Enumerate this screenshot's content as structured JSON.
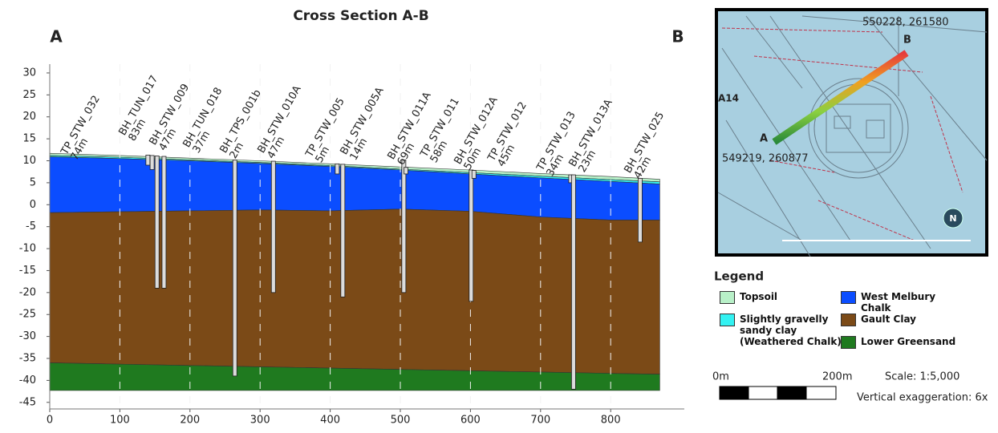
{
  "chart_data": {
    "type": "section",
    "title": "Cross Section A-B",
    "section_ends": [
      "A",
      "B"
    ],
    "x": [
      0,
      100,
      200,
      300,
      400,
      500,
      600,
      700,
      800,
      870
    ],
    "series": [
      {
        "name": "Topsoil",
        "color": "#b8f0c8",
        "values": [
          11.7,
          11.2,
          10.6,
          10.0,
          9.3,
          8.6,
          7.9,
          7.1,
          6.4,
          5.8
        ]
      },
      {
        "name": "Slightly gravelly sandy clay (Weathered Chalk)",
        "color": "#33f2f2",
        "values": [
          11.2,
          10.8,
          10.2,
          9.6,
          8.9,
          8.1,
          7.3,
          6.5,
          5.7,
          5.2
        ]
      },
      {
        "name": "West Melbury Chalk",
        "color": "#0b4dff",
        "values": [
          10.9,
          10.5,
          10.0,
          9.4,
          8.7,
          7.9,
          7.0,
          6.1,
          5.3,
          4.7
        ]
      },
      {
        "name": "Gault Clay",
        "color": "#7b4a17",
        "values": [
          -1.8,
          -1.6,
          -1.4,
          -1.2,
          -1.4,
          -1.0,
          -1.5,
          -2.8,
          -3.5,
          -3.5
        ]
      },
      {
        "name": "Lower Greensand",
        "color": "#1f7a1f",
        "values": [
          -36.0,
          -36.3,
          -36.6,
          -36.9,
          -37.2,
          -37.5,
          -37.8,
          -38.1,
          -38.4,
          -38.6
        ]
      }
    ],
    "base_values": [
      -42.3,
      -42.3,
      -42.3,
      -42.3,
      -42.3,
      -42.3,
      -42.3,
      -42.3,
      -42.3,
      -42.3
    ],
    "boreholes": [
      {
        "name": "TP_STW_032",
        "offset": "74m",
        "x": 140,
        "top": 11.3,
        "bottom": 9
      },
      {
        "name": "BH_TUN_017",
        "offset": "83m",
        "x": 146,
        "top": 11.2,
        "bottom": 8
      },
      {
        "name": "BH_STW_009",
        "offset": "47m",
        "x": 153,
        "top": 11.1,
        "bottom": -19
      },
      {
        "name": "BH_TUN_018",
        "offset": "37m",
        "x": 163,
        "top": 11.0,
        "bottom": -19
      },
      {
        "name": "BH_TPS_001b",
        "offset": "2m",
        "x": 264,
        "top": 10.2,
        "bottom": -39
      },
      {
        "name": "BH_STW_010A",
        "offset": "47m",
        "x": 319,
        "top": 9.9,
        "bottom": -20
      },
      {
        "name": "TP_STW_005",
        "offset": "5m",
        "x": 410,
        "top": 9.3,
        "bottom": 7
      },
      {
        "name": "BH_STW_005A",
        "offset": "14m",
        "x": 418,
        "top": 9.2,
        "bottom": -21
      },
      {
        "name": "BH_STW_011A",
        "offset": "69m",
        "x": 505,
        "top": 10.2,
        "bottom": -20
      },
      {
        "name": "TP_STW_011",
        "offset": "58m",
        "x": 508,
        "top": 8.5,
        "bottom": 7
      },
      {
        "name": "BH_STW_012A",
        "offset": "50m",
        "x": 601,
        "top": 7.9,
        "bottom": -22
      },
      {
        "name": "TP_STW_012",
        "offset": "45m",
        "x": 605,
        "top": 7.8,
        "bottom": 6
      },
      {
        "name": "TP_STW_013",
        "offset": "34m",
        "x": 743,
        "top": 6.8,
        "bottom": 5
      },
      {
        "name": "BH_STW_013A",
        "offset": "23m",
        "x": 747,
        "top": 6.8,
        "bottom": -42
      },
      {
        "name": "BH_STW_025",
        "offset": "42m",
        "x": 842,
        "top": 6.0,
        "bottom": -8.5
      }
    ],
    "xlim": [
      0,
      905
    ],
    "ylim": [
      -46.5,
      32
    ],
    "xticks": [
      0,
      100,
      200,
      300,
      400,
      500,
      600,
      700,
      800
    ],
    "yticks": [
      -45,
      -40,
      -35,
      -30,
      -25,
      -20,
      -15,
      -10,
      -5,
      0,
      5,
      10,
      15,
      20,
      25,
      30
    ],
    "grid": true,
    "legend_title": "Legend",
    "scale": {
      "start": "0m",
      "end": "200m",
      "ratio": "Scale: 1:5,000",
      "exaggeration": "Vertical exaggeration: 6x"
    },
    "inset": {
      "end_b": "550228, 261580",
      "label_b": "B",
      "label_a": "A",
      "road": "A14",
      "end_a": "549219, 260877",
      "north": "N"
    }
  }
}
